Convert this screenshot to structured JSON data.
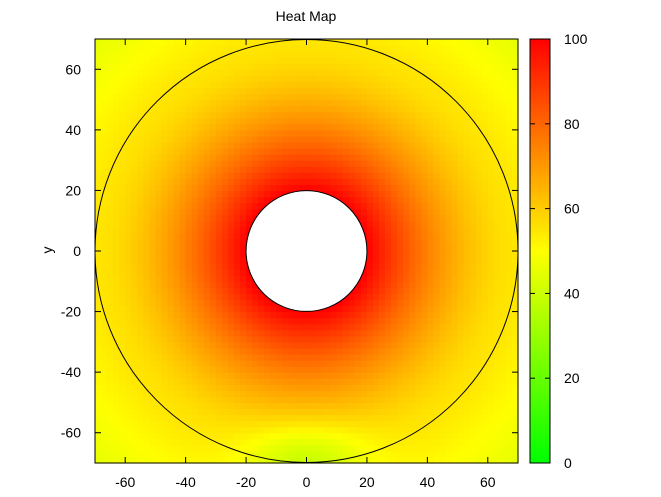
{
  "chart_data": {
    "type": "heatmap",
    "title": "Heat Map",
    "xlabel": "",
    "ylabel": "y",
    "xlim": [
      -70,
      70
    ],
    "ylim": [
      -70,
      70
    ],
    "xticks": [
      -60,
      -40,
      -20,
      0,
      20,
      40,
      60
    ],
    "yticks": [
      60,
      40,
      20,
      0,
      -20,
      -40,
      -60
    ],
    "colorbar": {
      "range": [
        0,
        100
      ],
      "ticks": [
        0,
        20,
        40,
        60,
        80,
        100
      ],
      "colormap": [
        "#00ff00",
        "#ffff00",
        "#ff0000"
      ]
    },
    "field": {
      "description_values": "radial temperature field around a hole",
      "inner_radius": 20,
      "outer_radius": 70,
      "value_at_inner": 100,
      "value_at_outer": 55,
      "value_at_corners": 45,
      "value_near_bottom_center": 38
    },
    "grid": false,
    "legend": "colorbar-right"
  }
}
